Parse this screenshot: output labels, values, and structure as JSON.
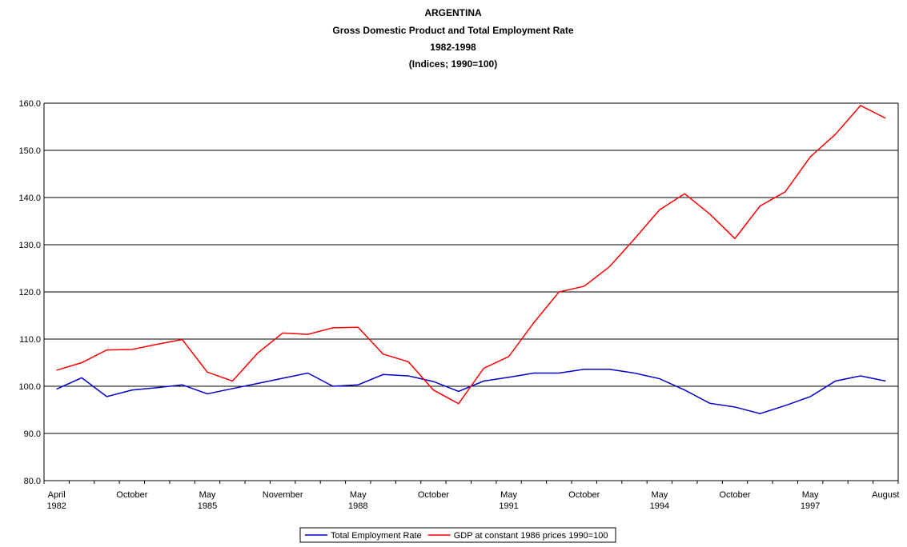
{
  "chart_data": {
    "type": "line",
    "title": "ARGENTINA",
    "subtitle": [
      "Gross Domestic Product and Total Employment Rate",
      "1982-1998",
      "(Indices; 1990=100)"
    ],
    "categories": [
      [
        "April",
        "1982"
      ],
      null,
      null,
      [
        "October"
      ],
      null,
      null,
      [
        "May",
        "1985"
      ],
      null,
      null,
      [
        "November"
      ],
      null,
      null,
      [
        "May",
        "1988"
      ],
      null,
      null,
      [
        "October"
      ],
      null,
      null,
      [
        "May",
        "1991"
      ],
      null,
      null,
      [
        "October"
      ],
      null,
      null,
      [
        "May",
        "1994"
      ],
      null,
      null,
      [
        "October"
      ],
      null,
      null,
      [
        "May",
        "1997"
      ],
      null,
      null,
      [
        "August"
      ]
    ],
    "series": [
      {
        "name": "Total Employment Rate",
        "color": "#0000cc",
        "values": [
          99.4,
          101.8,
          97.8,
          99.2,
          99.7,
          100.3,
          98.4,
          99.5,
          100.6,
          101.7,
          102.8,
          100.0,
          100.3,
          102.5,
          102.2,
          101.0,
          98.9,
          101.1,
          101.9,
          102.8,
          102.8,
          103.6,
          103.6,
          102.8,
          101.6,
          99.2,
          96.4,
          95.6,
          94.2,
          95.9,
          97.8,
          101.1,
          102.2,
          101.1
        ]
      },
      {
        "name": "GDP at constant 1986 prices 1990=100",
        "color": "#ff0000",
        "values": [
          103.4,
          105.0,
          107.7,
          107.8,
          108.9,
          109.9,
          103.0,
          101.1,
          107.0,
          111.3,
          111.0,
          112.4,
          112.5,
          106.8,
          105.2,
          99.2,
          96.3,
          103.8,
          106.3,
          113.5,
          120.0,
          121.2,
          125.3,
          131.2,
          137.4,
          140.8,
          136.5,
          131.3,
          138.2,
          141.2,
          148.6,
          153.4,
          159.5,
          156.8
        ]
      }
    ],
    "ylim": [
      80,
      160
    ],
    "yticks": [
      {
        "value": 80,
        "label": "80.0"
      },
      {
        "value": 90,
        "label": "90.0"
      },
      {
        "value": 100,
        "label": "100.0"
      },
      {
        "value": 110,
        "label": "110.0"
      },
      {
        "value": 120,
        "label": "120.0"
      },
      {
        "value": 130,
        "label": "130.0"
      },
      {
        "value": 140,
        "label": "140.0"
      },
      {
        "value": 150,
        "label": "150.0"
      },
      {
        "value": 160,
        "label": "160.0"
      }
    ],
    "grid": true,
    "legend": "bottom"
  }
}
